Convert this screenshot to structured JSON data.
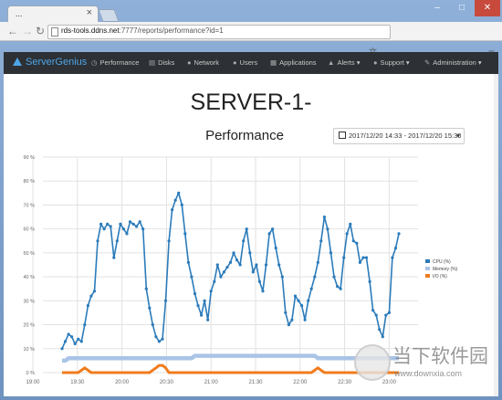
{
  "browser": {
    "tab_title": "...",
    "url_host": "rds-tools.ddns.net",
    "url_path": ":7777/reports/performance?id=1",
    "window_controls": [
      "–",
      "□",
      "✕"
    ]
  },
  "nav": {
    "brand": "ServerGenius",
    "items": [
      {
        "label": "Performance",
        "icon": "clock-icon"
      },
      {
        "label": "Disks",
        "icon": "disk-icon"
      },
      {
        "label": "Network",
        "icon": "globe-icon"
      },
      {
        "label": "Users",
        "icon": "user-icon"
      },
      {
        "label": "Applications",
        "icon": "grid-icon"
      },
      {
        "label": "Alerts ▾",
        "icon": "bell-icon"
      },
      {
        "label": "Support ▾",
        "icon": "help-icon"
      },
      {
        "label": "Administration ▾",
        "icon": "wrench-icon"
      }
    ]
  },
  "page": {
    "title": "SERVER-1-",
    "subtitle": "Performance",
    "date_range": "2017/12/20 14:33 - 2017/12/20 15:30"
  },
  "watermark": {
    "text": "当下软件园",
    "url": "www.downxia.com"
  },
  "colors": {
    "cpu": "#2b7bba",
    "memory": "#a9c4e6",
    "io": "#f07c1e",
    "navbar": "#2d3034",
    "brand": "#4fa5e8"
  },
  "chart_data": {
    "type": "line",
    "x_ticks": [
      "19:00",
      "19:30",
      "20:00",
      "20:30",
      "21:00",
      "21:30",
      "22:00",
      "22:30",
      "23:00"
    ],
    "y_ticks": [
      "0 %",
      "10 %",
      "20 %",
      "30 %",
      "40 %",
      "50 %",
      "60 %",
      "70 %",
      "80 %",
      "90 %"
    ],
    "ylim": [
      0,
      90
    ],
    "legend_position": "right",
    "grid": true,
    "series": [
      {
        "name": "CPU (%)",
        "color": "#2b7bba",
        "values": [
          10,
          13,
          16,
          15,
          12,
          14,
          13,
          20,
          28,
          32,
          34,
          55,
          62,
          60,
          62,
          61,
          48,
          55,
          62,
          60,
          58,
          63,
          62,
          61,
          63,
          60,
          35,
          27,
          20,
          15,
          13,
          14,
          30,
          55,
          68,
          72,
          75,
          70,
          58,
          46,
          40,
          33,
          28,
          24,
          30,
          22,
          34,
          38,
          45,
          40,
          42,
          44,
          46,
          50,
          47,
          45,
          55,
          60,
          50,
          42,
          45,
          38,
          34,
          45,
          58,
          60,
          52,
          45,
          40,
          25,
          20,
          22,
          32,
          30,
          28,
          22,
          30,
          35,
          40,
          46,
          55,
          65,
          60,
          50,
          40,
          36,
          35,
          48,
          58,
          62,
          55,
          54,
          46,
          48,
          48,
          38,
          26,
          24,
          18,
          15,
          24,
          25,
          48,
          52,
          58
        ]
      },
      {
        "name": "Memory (%)",
        "color": "#a9c4e6",
        "values": [
          5,
          5,
          6,
          6,
          6,
          6,
          6,
          6,
          6,
          6,
          6,
          6,
          6,
          6,
          6,
          6,
          6,
          6,
          6,
          6,
          6,
          6,
          6,
          6,
          6,
          6,
          6,
          6,
          6,
          6,
          6,
          6,
          6,
          6,
          6,
          6,
          6,
          6,
          6,
          6,
          6,
          7,
          7,
          7,
          7,
          7,
          7,
          7,
          7,
          7,
          7,
          7,
          7,
          7,
          7,
          7,
          7,
          7,
          7,
          7,
          7,
          7,
          7,
          7,
          7,
          7,
          7,
          7,
          7,
          7,
          7,
          7,
          7,
          7,
          7,
          7,
          7,
          7,
          7,
          6,
          6,
          6,
          6,
          6,
          6,
          6,
          6,
          6,
          6,
          6,
          6,
          6,
          6,
          6,
          6,
          6,
          6,
          6,
          6,
          6,
          6,
          6,
          6,
          6,
          6
        ]
      },
      {
        "name": "I/O (%)",
        "color": "#f07c1e",
        "values": [
          0,
          0,
          0,
          0,
          0,
          0,
          1,
          2,
          1,
          0,
          0,
          0,
          0,
          0,
          0,
          0,
          0,
          0,
          0,
          0,
          0,
          0,
          0,
          0,
          0,
          0,
          0,
          0,
          1,
          2,
          3,
          3,
          2,
          0,
          0,
          0,
          0,
          0,
          0,
          0,
          0,
          0,
          0,
          0,
          0,
          0,
          0,
          0,
          0,
          0,
          0,
          0,
          0,
          0,
          0,
          0,
          0,
          0,
          0,
          0,
          0,
          0,
          0,
          0,
          0,
          0,
          0,
          0,
          0,
          0,
          0,
          0,
          0,
          0,
          0,
          0,
          0,
          0,
          1,
          2,
          1,
          0,
          0,
          0,
          0,
          0,
          0,
          0,
          0,
          0,
          0,
          0,
          0,
          0,
          0,
          0,
          0,
          0,
          0,
          0,
          0,
          0,
          0,
          0,
          0
        ]
      }
    ]
  }
}
